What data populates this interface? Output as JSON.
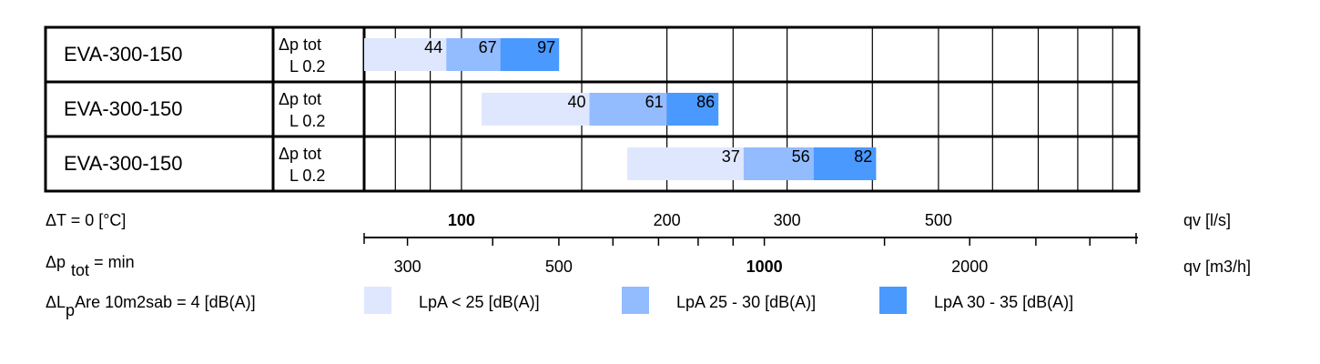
{
  "chart_data": {
    "type": "bar",
    "title": "",
    "colors": {
      "low": "#dfe7ff",
      "mid": "#93bcff",
      "high": "#4a99ff",
      "border": "#000000"
    },
    "rows": [
      {
        "model": "EVA-300-150",
        "dp_label": "Δp tot",
        "l_label": "L 0.2",
        "segments": [
          {
            "band": "low",
            "from": 72,
            "to": 95,
            "label": "44"
          },
          {
            "band": "mid",
            "from": 95,
            "to": 114,
            "label": "67"
          },
          {
            "band": "high",
            "from": 114,
            "to": 139,
            "label": "97"
          }
        ]
      },
      {
        "model": "EVA-300-150",
        "dp_label": "Δp tot",
        "l_label": "L 0.2",
        "segments": [
          {
            "band": "low",
            "from": 107,
            "to": 154,
            "label": "40"
          },
          {
            "band": "mid",
            "from": 154,
            "to": 200,
            "label": "61"
          },
          {
            "band": "high",
            "from": 200,
            "to": 238,
            "label": "86"
          }
        ]
      },
      {
        "model": "EVA-300-150",
        "dp_label": "Δp tot",
        "l_label": "L 0.2",
        "segments": [
          {
            "band": "low",
            "from": 175,
            "to": 259,
            "label": "37"
          },
          {
            "band": "mid",
            "from": 259,
            "to": 328,
            "label": "56"
          },
          {
            "band": "high",
            "from": 328,
            "to": 405,
            "label": "82"
          }
        ]
      }
    ],
    "axis_ls": {
      "scale": "log",
      "range": [
        72,
        980
      ],
      "unit_label": "qv [l/s]",
      "tick_labels": [
        "100",
        "200",
        "300",
        "500"
      ],
      "tick_values": [
        100,
        200,
        300,
        500
      ],
      "minor_ticks": [
        80,
        90,
        150,
        250,
        400,
        600,
        700,
        800,
        900
      ]
    },
    "axis_m3h": {
      "scale": "log",
      "unit_label": "qv [m3/h]",
      "tick_labels": [
        "300",
        "500",
        "1000",
        "2000"
      ],
      "tick_values": [
        300,
        500,
        1000,
        2000
      ],
      "minor_ticks": [
        400,
        600,
        700,
        800,
        900,
        1500,
        2500,
        3000
      ]
    },
    "bold_tick_labels": [
      "100",
      "1000"
    ],
    "legend": [
      {
        "band": "low",
        "label": "LpA < 25 [dB(A)]"
      },
      {
        "band": "mid",
        "label": "LpA 25 - 30 [dB(A)]"
      },
      {
        "band": "high",
        "label": "LpA 30 - 35 [dB(A)]"
      }
    ]
  },
  "notes": {
    "delta_t": "ΔT = 0 [°C]",
    "dp_prefix": "Δp",
    "dp_sub": "tot",
    "dp_suffix": " = min",
    "dl_prefix": "ΔL",
    "dl_sub": "p",
    "dl_suffix": "Are 10m2sab = 4 [dB(A)]"
  }
}
